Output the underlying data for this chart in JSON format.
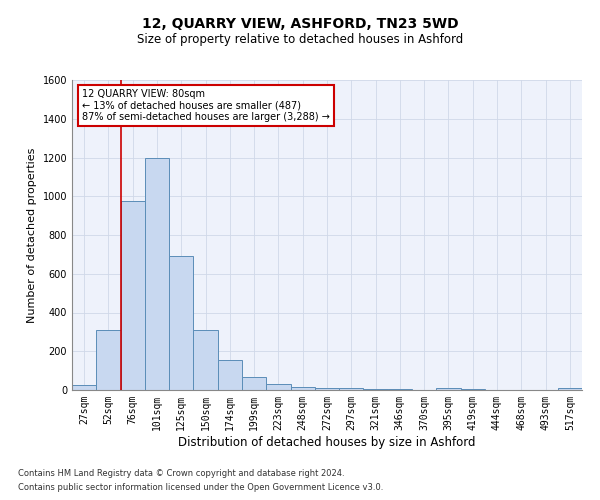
{
  "title": "12, QUARRY VIEW, ASHFORD, TN23 5WD",
  "subtitle": "Size of property relative to detached houses in Ashford",
  "xlabel": "Distribution of detached houses by size in Ashford",
  "ylabel": "Number of detached properties",
  "categories": [
    "27sqm",
    "52sqm",
    "76sqm",
    "101sqm",
    "125sqm",
    "150sqm",
    "174sqm",
    "199sqm",
    "223sqm",
    "248sqm",
    "272sqm",
    "297sqm",
    "321sqm",
    "346sqm",
    "370sqm",
    "395sqm",
    "419sqm",
    "444sqm",
    "468sqm",
    "493sqm",
    "517sqm"
  ],
  "values": [
    25,
    310,
    975,
    1200,
    690,
    310,
    155,
    65,
    30,
    18,
    12,
    8,
    5,
    3,
    2,
    12,
    3,
    2,
    2,
    2,
    10
  ],
  "bar_color": "#c8d8f0",
  "bar_edge_color": "#5b8db8",
  "grid_color": "#d0d8e8",
  "background_color": "#eef2fb",
  "annotation_box_color": "#ffffff",
  "annotation_border_color": "#cc0000",
  "annotation_line1": "12 QUARRY VIEW: 80sqm",
  "annotation_line2": "← 13% of detached houses are smaller (487)",
  "annotation_line3": "87% of semi-detached houses are larger (3,288) →",
  "footer1": "Contains HM Land Registry data © Crown copyright and database right 2024.",
  "footer2": "Contains public sector information licensed under the Open Government Licence v3.0.",
  "ylim": [
    0,
    1600
  ],
  "yticks": [
    0,
    200,
    400,
    600,
    800,
    1000,
    1200,
    1400,
    1600
  ],
  "red_line_index": 1.5,
  "title_fontsize": 10,
  "subtitle_fontsize": 8.5,
  "ylabel_fontsize": 8,
  "xlabel_fontsize": 8.5,
  "tick_fontsize": 7,
  "ann_fontsize": 7,
  "footer_fontsize": 6
}
